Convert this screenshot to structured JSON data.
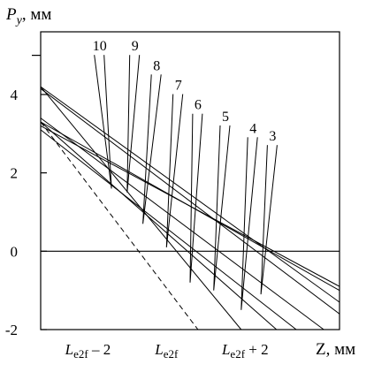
{
  "chart_data": {
    "type": "line",
    "ylabel_main": "P",
    "ylabel_sub": "y",
    "ylabel_unit": ", мм",
    "xlabel": "Z, мм",
    "xlim": [
      -3.2,
      4.4
    ],
    "ylim": [
      -2,
      5.6
    ],
    "y_ticks": [
      {
        "value": -2,
        "label": "-2"
      },
      {
        "value": 0,
        "label": "0"
      },
      {
        "value": 2,
        "label": "2"
      },
      {
        "value": 4,
        "label": "4"
      }
    ],
    "y_minor_ticks": [
      5
    ],
    "x_ticks": [
      {
        "value": -2,
        "label": "L",
        "sub": "e2f",
        "suffix": " – 2"
      },
      {
        "value": 0,
        "label": "L",
        "sub": "e2f",
        "suffix": ""
      },
      {
        "value": 2,
        "label": "L",
        "sub": "e2f",
        "suffix": " + 2"
      }
    ],
    "grid": false,
    "series": [
      {
        "name": "3",
        "x": [
          -3.2,
          4.4
        ],
        "y": [
          4.2,
          -1.3
        ],
        "label_at": [
          2.7,
          2.8
        ],
        "anchor": [
          2.4,
          -1.1
        ]
      },
      {
        "name": "4",
        "x": [
          -3.2,
          4.4
        ],
        "y": [
          4.15,
          -1.6
        ],
        "label_at": [
          2.2,
          3.0
        ],
        "anchor": [
          1.9,
          -1.5
        ]
      },
      {
        "name": "5",
        "x": [
          -3.2,
          4.4
        ],
        "y": [
          3.3,
          -1.0
        ],
        "label_at": [
          1.5,
          3.3
        ],
        "anchor": [
          1.2,
          -1.0
        ]
      },
      {
        "name": "6",
        "x": [
          -3.2,
          4.4
        ],
        "y": [
          3.2,
          -0.9
        ],
        "label_at": [
          0.8,
          3.6
        ],
        "anchor": [
          0.6,
          -0.8
        ]
      },
      {
        "name": "7",
        "x": [
          -3.2,
          4.0
        ],
        "y": [
          3.4,
          -2.0
        ],
        "label_at": [
          0.3,
          4.1
        ],
        "anchor": [
          0.0,
          0.1
        ]
      },
      {
        "name": "8",
        "x": [
          -3.2,
          3.3
        ],
        "y": [
          3.1,
          -2.0
        ],
        "label_at": [
          -0.25,
          4.6
        ],
        "anchor": [
          -0.6,
          0.7
        ]
      },
      {
        "name": "9",
        "x": [
          -3.2,
          2.8
        ],
        "y": [
          3.3,
          -2.0
        ],
        "label_at": [
          -0.8,
          5.1
        ],
        "anchor": [
          -1.0,
          1.5
        ]
      },
      {
        "name": "10",
        "x": [
          -3.2,
          1.9
        ],
        "y": [
          4.2,
          -2.0
        ],
        "label_at": [
          -1.7,
          5.1
        ],
        "anchor": [
          -1.4,
          1.6
        ]
      },
      {
        "name": "",
        "x": [
          -3.2,
          0.8
        ],
        "y": [
          3.3,
          -2.0
        ],
        "dashed": true
      }
    ]
  }
}
